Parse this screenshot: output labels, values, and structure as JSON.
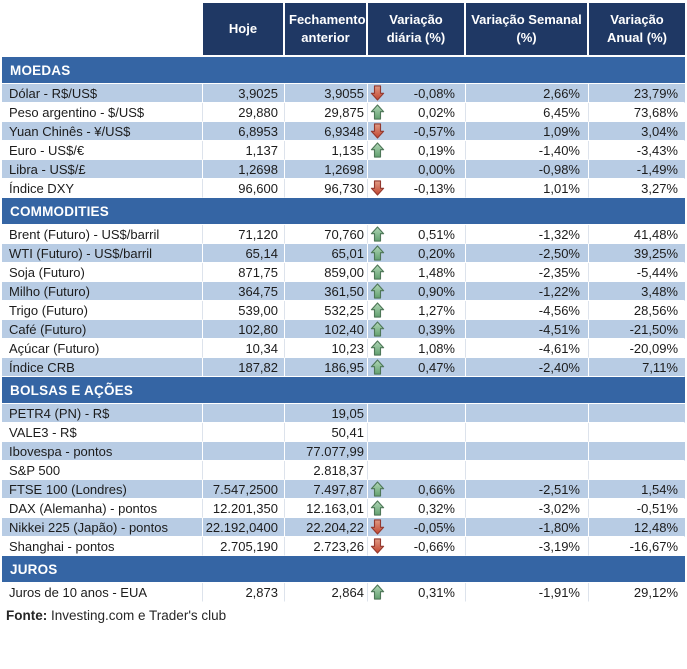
{
  "header": {
    "asset": "",
    "hoje": "Hoje",
    "fechamento": "Fechamento anterior",
    "diaria": "Variação diária (%)",
    "semanal": "Variação Semanal (%)",
    "anual": "Variação Anual (%)"
  },
  "sections": [
    {
      "title": "MOEDAS",
      "rows": [
        {
          "label": "Dólar - R$/US$",
          "hoje": "3,9025",
          "fechamento": "3,9055",
          "arrow": "down",
          "diaria": "-0,08%",
          "semanal": "2,66%",
          "anual": "23,79%"
        },
        {
          "label": "Peso argentino - $/US$",
          "hoje": "29,880",
          "fechamento": "29,875",
          "arrow": "up",
          "diaria": "0,02%",
          "semanal": "6,45%",
          "anual": "73,68%"
        },
        {
          "label": "Yuan Chinês - ¥/US$",
          "hoje": "6,8953",
          "fechamento": "6,9348",
          "arrow": "down",
          "diaria": "-0,57%",
          "semanal": "1,09%",
          "anual": "3,04%"
        },
        {
          "label": "Euro - US$/€",
          "hoje": "1,137",
          "fechamento": "1,135",
          "arrow": "up",
          "diaria": "0,19%",
          "semanal": "-1,40%",
          "anual": "-3,43%"
        },
        {
          "label": "Libra - US$/£",
          "hoje": "1,2698",
          "fechamento": "1,2698",
          "arrow": null,
          "diaria": "0,00%",
          "semanal": "-0,98%",
          "anual": "-1,49%"
        },
        {
          "label": "Índice DXY",
          "hoje": "96,600",
          "fechamento": "96,730",
          "arrow": "down",
          "diaria": "-0,13%",
          "semanal": "1,01%",
          "anual": "3,27%"
        }
      ]
    },
    {
      "title": "COMMODITIES",
      "rows": [
        {
          "label": "Brent (Futuro) - US$/barril",
          "hoje": "71,120",
          "fechamento": "70,760",
          "arrow": "up",
          "diaria": "0,51%",
          "semanal": "-1,32%",
          "anual": "41,48%"
        },
        {
          "label": "WTI (Futuro) - US$/barril",
          "hoje": "65,14",
          "fechamento": "65,01",
          "arrow": "up",
          "diaria": "0,20%",
          "semanal": "-2,50%",
          "anual": "39,25%"
        },
        {
          "label": "Soja (Futuro)",
          "hoje": "871,75",
          "fechamento": "859,00",
          "arrow": "up",
          "diaria": "1,48%",
          "semanal": "-2,35%",
          "anual": "-5,44%"
        },
        {
          "label": "Milho (Futuro)",
          "hoje": "364,75",
          "fechamento": "361,50",
          "arrow": "up",
          "diaria": "0,90%",
          "semanal": "-1,22%",
          "anual": "3,48%"
        },
        {
          "label": "Trigo (Futuro)",
          "hoje": "539,00",
          "fechamento": "532,25",
          "arrow": "up",
          "diaria": "1,27%",
          "semanal": "-4,56%",
          "anual": "28,56%"
        },
        {
          "label": "Café (Futuro)",
          "hoje": "102,80",
          "fechamento": "102,40",
          "arrow": "up",
          "diaria": "0,39%",
          "semanal": "-4,51%",
          "anual": "-21,50%"
        },
        {
          "label": "Açúcar (Futuro)",
          "hoje": "10,34",
          "fechamento": "10,23",
          "arrow": "up",
          "diaria": "1,08%",
          "semanal": "-4,61%",
          "anual": "-20,09%"
        },
        {
          "label": "Índice CRB",
          "hoje": "187,82",
          "fechamento": "186,95",
          "arrow": "up",
          "diaria": "0,47%",
          "semanal": "-2,40%",
          "anual": "7,11%"
        }
      ]
    },
    {
      "title": "BOLSAS E AÇÕES",
      "rows": [
        {
          "label": "PETR4 (PN) - R$",
          "hoje": "",
          "fechamento": "19,05",
          "arrow": null,
          "diaria": "",
          "semanal": "",
          "anual": ""
        },
        {
          "label": "VALE3 - R$",
          "hoje": "",
          "fechamento": "50,41",
          "arrow": null,
          "diaria": "",
          "semanal": "",
          "anual": ""
        },
        {
          "label": "Ibovespa - pontos",
          "hoje": "",
          "fechamento": "77.077,99",
          "arrow": null,
          "diaria": "",
          "semanal": "",
          "anual": ""
        },
        {
          "label": "S&P 500",
          "hoje": "",
          "fechamento": "2.818,37",
          "arrow": null,
          "diaria": "",
          "semanal": "",
          "anual": ""
        },
        {
          "label": "FTSE 100 (Londres)",
          "hoje": "7.547,2500",
          "fechamento": "7.497,87",
          "arrow": "up",
          "diaria": "0,66%",
          "semanal": "-2,51%",
          "anual": "1,54%"
        },
        {
          "label": "DAX (Alemanha) - pontos",
          "hoje": "12.201,350",
          "fechamento": "12.163,01",
          "arrow": "up",
          "diaria": "0,32%",
          "semanal": "-3,02%",
          "anual": "-0,51%"
        },
        {
          "label": "Nikkei 225 (Japão) - pontos",
          "hoje": "22.192,0400",
          "fechamento": "22.204,22",
          "arrow": "down",
          "diaria": "-0,05%",
          "semanal": "-1,80%",
          "anual": "12,48%"
        },
        {
          "label": "Shanghai - pontos",
          "hoje": "2.705,190",
          "fechamento": "2.723,26",
          "arrow": "down",
          "diaria": "-0,66%",
          "semanal": "-3,19%",
          "anual": "-16,67%"
        }
      ]
    },
    {
      "title": "JUROS",
      "rows": [
        {
          "label": "Juros de 10 anos - EUA",
          "hoje": "2,873",
          "fechamento": "2,864",
          "arrow": "up",
          "diaria": "0,31%",
          "semanal": "-1,91%",
          "anual": "29,12%"
        }
      ]
    }
  ],
  "footer": {
    "label": "Fonte:",
    "text": " Investing.com e Trader's club"
  },
  "icons": {
    "up": "up-arrow-icon",
    "down": "down-arrow-icon"
  },
  "colors": {
    "header_bg": "#1F3864",
    "band_bg": "#3565A4",
    "row_shade": "#B8CCE4",
    "row_plain": "#FFFFFF",
    "up_arrow": "#6FAE7B",
    "down_arrow": "#CE5442",
    "header_text": "#FFFFFF"
  }
}
